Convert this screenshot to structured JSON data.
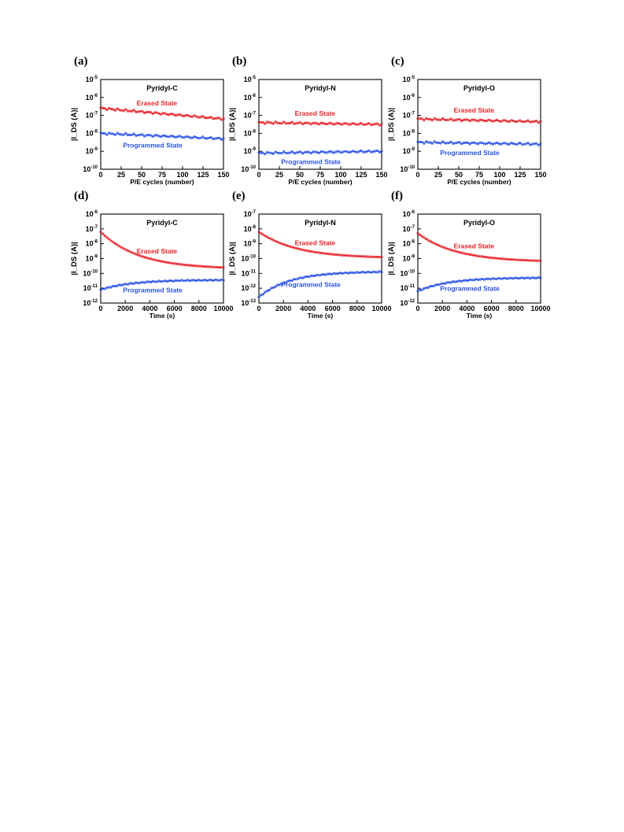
{
  "chart_data": [
    {
      "panel": "(a)",
      "type": "scatter",
      "title": "Pyridyl-C",
      "xlabel": "P/E cycles (number)",
      "ylabel": "|I_DS (A)|",
      "xlim": [
        0,
        150
      ],
      "ylim_exp": [
        -10,
        -5
      ],
      "yscale": "log",
      "xticks": [
        "0",
        "25",
        "50",
        "75",
        "100",
        "125",
        "150"
      ],
      "yticks": [
        "-10",
        "-9",
        "-8",
        "-7",
        "-6",
        "-5"
      ],
      "series": [
        {
          "name": "Erased State",
          "color": "#e8242a",
          "x": [
            0,
            150
          ],
          "log_y": [
            -6.6,
            -7.2
          ]
        },
        {
          "name": "Programmed State",
          "color": "#2a54e6",
          "x": [
            0,
            150
          ],
          "log_y": [
            -8.0,
            -8.3
          ]
        }
      ]
    },
    {
      "panel": "(b)",
      "type": "scatter",
      "title": "Pyridyl-N",
      "xlabel": "P/E cycles (number)",
      "ylabel": "|I_DS (A)|",
      "xlim": [
        0,
        150
      ],
      "ylim_exp": [
        -10,
        -5
      ],
      "yscale": "log",
      "xticks": [
        "0",
        "25",
        "50",
        "75",
        "100",
        "125",
        "150"
      ],
      "yticks": [
        "-10",
        "-9",
        "-8",
        "-7",
        "-6",
        "-5"
      ],
      "series": [
        {
          "name": "Erased State",
          "color": "#e8242a",
          "x": [
            0,
            150
          ],
          "log_y": [
            -7.4,
            -7.5
          ]
        },
        {
          "name": "Programmed State",
          "color": "#2a54e6",
          "x": [
            0,
            150
          ],
          "log_y": [
            -9.1,
            -9.0
          ]
        }
      ]
    },
    {
      "panel": "(c)",
      "type": "scatter",
      "title": "Pyridyl-O",
      "xlabel": "P/E cycles (number)",
      "ylabel": "|I_DS (A)|",
      "xlim": [
        0,
        150
      ],
      "ylim_exp": [
        -10,
        -5
      ],
      "yscale": "log",
      "xticks": [
        "0",
        "25",
        "50",
        "75",
        "100",
        "125",
        "150"
      ],
      "yticks": [
        "-10",
        "-9",
        "-8",
        "-7",
        "-6",
        "-5"
      ],
      "series": [
        {
          "name": "Erased State",
          "color": "#e8242a",
          "x": [
            0,
            150
          ],
          "log_y": [
            -7.2,
            -7.35
          ]
        },
        {
          "name": "Programmed State",
          "color": "#2a54e6",
          "x": [
            0,
            150
          ],
          "log_y": [
            -8.5,
            -8.6
          ]
        }
      ]
    },
    {
      "panel": "(d)",
      "type": "scatter",
      "title": "Pyridyl-C",
      "xlabel": "Time (s)",
      "ylabel": "|I_DS (A)|",
      "xlim": [
        0,
        10000
      ],
      "ylim_exp": [
        -12,
        -6
      ],
      "yscale": "log",
      "xticks": [
        "0",
        "2000",
        "4000",
        "6000",
        "8000",
        "10000"
      ],
      "yticks": [
        "-12",
        "-11",
        "-10",
        "-9",
        "-8",
        "-7",
        "-6"
      ],
      "series": [
        {
          "name": "Erased State",
          "color": "#e8242a",
          "x": [
            0,
            10000
          ],
          "log_y_start": -7.2,
          "log_y_end": -9.6,
          "shape": "decay"
        },
        {
          "name": "Programmed State",
          "color": "#2a54e6",
          "x": [
            0,
            10000
          ],
          "log_y_start": -11.1,
          "log_y_end": -10.45,
          "shape": "rise"
        }
      ]
    },
    {
      "panel": "(e)",
      "type": "scatter",
      "title": "Pyridyl-N",
      "xlabel": "Time (s)",
      "ylabel": "|I_DS (A)|",
      "xlim": [
        0,
        10000
      ],
      "ylim_exp": [
        -13,
        -7
      ],
      "yscale": "log",
      "xticks": [
        "0",
        "2000",
        "4000",
        "6000",
        "8000",
        "10000"
      ],
      "yticks": [
        "-13",
        "-12",
        "-11",
        "-10",
        "-9",
        "-8",
        "-7"
      ],
      "series": [
        {
          "name": "Erased State",
          "color": "#e8242a",
          "x": [
            0,
            10000
          ],
          "log_y_start": -8.2,
          "log_y_end": -9.9,
          "shape": "decay"
        },
        {
          "name": "Programmed State",
          "color": "#2a54e6",
          "x": [
            0,
            10000
          ],
          "log_y_start": -12.6,
          "log_y_end": -10.9,
          "shape": "rise"
        }
      ]
    },
    {
      "panel": "(f)",
      "type": "scatter",
      "title": "Pyridyl-O",
      "xlabel": "Time (s)",
      "ylabel": "|I_DS (A)|",
      "xlim": [
        0,
        10000
      ],
      "ylim_exp": [
        -12,
        -6
      ],
      "yscale": "log",
      "xticks": [
        "0",
        "2000",
        "4000",
        "6000",
        "8000",
        "10000"
      ],
      "yticks": [
        "-12",
        "-11",
        "-10",
        "-9",
        "-8",
        "-7",
        "-6"
      ],
      "series": [
        {
          "name": "Erased State",
          "color": "#e8242a",
          "x": [
            0,
            10000
          ],
          "log_y_start": -7.3,
          "log_y_end": -9.15,
          "shape": "decay"
        },
        {
          "name": "Programmed State",
          "color": "#2a54e6",
          "x": [
            0,
            10000
          ],
          "log_y_start": -11.2,
          "log_y_end": -10.3,
          "shape": "rise"
        }
      ]
    }
  ]
}
